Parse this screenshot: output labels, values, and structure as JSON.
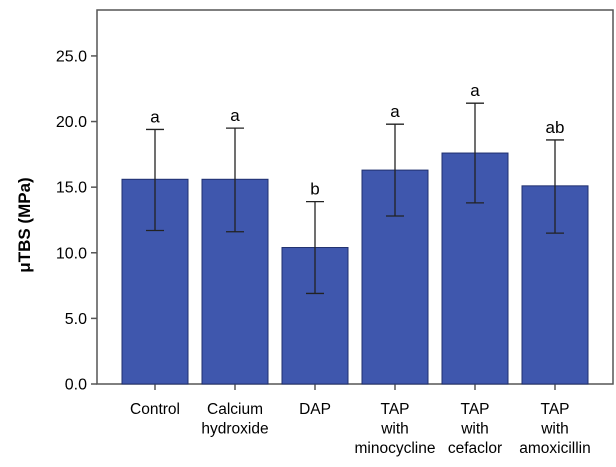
{
  "chart_data": {
    "type": "bar",
    "ylabel": "μTBS (MPa)",
    "xlabel": "",
    "ylim": [
      0,
      28.5
    ],
    "yticks": [
      0.0,
      5.0,
      10.0,
      15.0,
      20.0,
      25.0
    ],
    "ytick_labels": [
      "0.0",
      "5.0",
      "10.0",
      "15.0",
      "20.0",
      "25.0"
    ],
    "grid": false,
    "bar_color": "#3f57ad",
    "categories": [
      [
        "Control"
      ],
      [
        "Calcium",
        "hydroxide"
      ],
      [
        "DAP"
      ],
      [
        "TAP",
        "with",
        "minocycline"
      ],
      [
        "TAP",
        "with",
        "cefaclor"
      ],
      [
        "TAP",
        "with",
        "amoxicillin"
      ]
    ],
    "values": [
      15.6,
      15.6,
      10.4,
      16.3,
      17.6,
      15.1
    ],
    "error_low": [
      11.7,
      11.6,
      6.9,
      12.8,
      13.8,
      11.5
    ],
    "error_high": [
      19.4,
      19.5,
      13.9,
      19.8,
      21.4,
      18.6
    ],
    "significance_labels": [
      "a",
      "a",
      "b",
      "a",
      "a",
      "ab"
    ]
  }
}
